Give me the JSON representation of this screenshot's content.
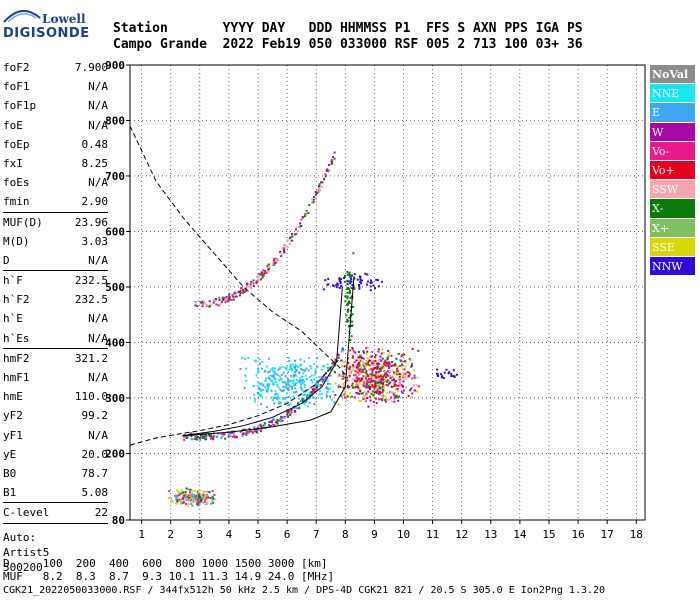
{
  "logo": {
    "line1": "Lowell",
    "line2": "DIGISONDE"
  },
  "header": {
    "line1": "Station       YYYY DAY   DDD HHMMSS P1  FFS S AXN PPS IGA PS",
    "line2": "Campo Grande  2022 Feb19 050 033000 RSF 005 2 713 100 03+ 36"
  },
  "params": [
    {
      "k": "foF2",
      "v": "7.900"
    },
    {
      "k": "foF1",
      "v": "N/A"
    },
    {
      "k": "foF1p",
      "v": "N/A"
    },
    {
      "k": "foE",
      "v": "N/A"
    },
    {
      "k": "foEp",
      "v": "0.48"
    },
    {
      "k": "fxI",
      "v": "8.25"
    },
    {
      "k": "foEs",
      "v": "N/A"
    },
    {
      "k": "fmin",
      "v": "2.90"
    },
    {
      "k": "MUF(D)",
      "v": "23.96",
      "sep": true
    },
    {
      "k": "M(D)",
      "v": "3.03"
    },
    {
      "k": "D",
      "v": "N/A"
    },
    {
      "k": "h`F",
      "v": "232.5",
      "sep": true
    },
    {
      "k": "h`F2",
      "v": "232.5"
    },
    {
      "k": "h`E",
      "v": "N/A"
    },
    {
      "k": "h`Es",
      "v": "N/A"
    },
    {
      "k": "hmF2",
      "v": "321.2",
      "sep": true
    },
    {
      "k": "hmF1",
      "v": "N/A"
    },
    {
      "k": "hmE",
      "v": "110.0"
    },
    {
      "k": "yF2",
      "v": "99.2"
    },
    {
      "k": "yF1",
      "v": "N/A"
    },
    {
      "k": "yE",
      "v": "20.0"
    },
    {
      "k": "B0",
      "v": "78.7"
    },
    {
      "k": "B1",
      "v": "5.08"
    },
    {
      "k": "C-level",
      "v": "22",
      "sep": true
    }
  ],
  "auto": {
    "l1": "Auto:",
    "l2": "Artist5",
    "l3": "500200"
  },
  "legend": [
    {
      "label": "NoVal",
      "color": "#8c8c8c"
    },
    {
      "label": "NNE",
      "color": "#19e6f0"
    },
    {
      "label": "E",
      "color": "#3fa6f2"
    },
    {
      "label": "W",
      "color": "#a60aa6"
    },
    {
      "label": "Vo-",
      "color": "#ea1a8c"
    },
    {
      "label": "Vo+",
      "color": "#e4001e"
    },
    {
      "label": "SSW",
      "color": "#f4a6b0"
    },
    {
      "label": "X-",
      "color": "#0a7a0a"
    },
    {
      "label": "X+",
      "color": "#7fbf5e"
    },
    {
      "label": "SSE",
      "color": "#d6d60a"
    },
    {
      "label": "NNW",
      "color": "#2f0ad6"
    }
  ],
  "footer": {
    "line1": "D     100  200  400  600  800 1000 1500 3000 [km]",
    "line2": "MUF   8.2  8.3  8.7  9.3 10.1 11.3 14.9 24.0 [MHz]",
    "line3": "CGK21_2022050033000.RSF / 344fx512h 50 kHz 2.5 km / DPS-4D CGK21 821 / 20.5 S 305.0 E Ion2Png 1.3.20"
  },
  "chart_data": {
    "type": "scatter",
    "xlim": [
      0.6,
      18.3
    ],
    "ylim": [
      80,
      900
    ],
    "xticks": [
      1,
      2,
      3,
      4,
      5,
      6,
      7,
      8,
      9,
      10,
      11,
      12,
      13,
      14,
      15,
      16,
      17,
      18
    ],
    "yticks": [
      80,
      200,
      300,
      400,
      500,
      600,
      700,
      800,
      900
    ],
    "grid": true,
    "clusters": [
      {
        "name": "low-E-echoes",
        "fx": [
          1.9,
          3.6
        ],
        "fy": [
          105,
          140
        ],
        "colors": [
          "#d6d60a",
          "#3fa6f2",
          "#ea1a8c",
          "#0a7a0a",
          "#f4a6b0"
        ],
        "n": 180
      },
      {
        "name": "F-trace-lower",
        "fx": [
          2.4,
          7.9
        ],
        "fy": [
          230,
          400
        ],
        "colors": [
          "#ea1a8c",
          "#0a7a0a",
          "#a60aa6",
          "#3fa6f2"
        ],
        "n": 260,
        "curve": "ordinary"
      },
      {
        "name": "spread-E-side",
        "fx": [
          4.2,
          7.8
        ],
        "fy": [
          280,
          380
        ],
        "colors": [
          "#3fa6f2",
          "#19e6f0"
        ],
        "n": 320
      },
      {
        "name": "spread-F-main",
        "fx": [
          7.5,
          10.6
        ],
        "fy": [
          285,
          395
        ],
        "colors": [
          "#ea1a8c",
          "#e4001e",
          "#d6d60a",
          "#0a7a0a",
          "#f4a6b0",
          "#a60aa6"
        ],
        "n": 620
      },
      {
        "name": "second-hop",
        "fx": [
          2.8,
          7.6
        ],
        "fy": [
          470,
          740
        ],
        "colors": [
          "#ea1a8c",
          "#f4a6b0",
          "#0a7a0a",
          "#a60aa6"
        ],
        "n": 220,
        "curve": "multihop"
      },
      {
        "name": "NNW-echoes",
        "fx": [
          7.2,
          9.3
        ],
        "fy": [
          495,
          530
        ],
        "colors": [
          "#2f0ad6"
        ],
        "n": 60
      },
      {
        "name": "NNW-high-x",
        "fx": [
          11.0,
          11.9
        ],
        "fy": [
          335,
          355
        ],
        "colors": [
          "#2f0ad6"
        ],
        "n": 20
      },
      {
        "name": "X-vertical",
        "fx": [
          7.9,
          8.3
        ],
        "fy": [
          380,
          570
        ],
        "colors": [
          "#0a7a0a"
        ],
        "n": 60
      }
    ],
    "curves": [
      {
        "name": "MUF-dashed",
        "style": "dashed",
        "x": [
          0.6,
          1.5,
          2.5,
          3.5,
          4.5,
          5.5,
          6.5,
          7.2,
          7.8,
          8.1
        ],
        "y": [
          790,
          690,
          620,
          560,
          500,
          455,
          420,
          385,
          355,
          335
        ]
      },
      {
        "name": "MUF-dashed-low",
        "style": "dashed",
        "x": [
          0.6,
          1.5,
          2.4,
          3.0,
          4.0,
          5.0,
          6.0,
          7.0,
          7.6
        ],
        "y": [
          215,
          228,
          236,
          241,
          252,
          268,
          290,
          325,
          360
        ]
      },
      {
        "name": "profile-solid",
        "style": "solid",
        "x": [
          2.4,
          3.5,
          4.5,
          5.5,
          6.5,
          7.2,
          7.7,
          7.9
        ],
        "y": [
          232,
          240,
          250,
          265,
          290,
          320,
          365,
          500
        ]
      },
      {
        "name": "profile-solid-2",
        "style": "solid",
        "x": [
          2.4,
          4.0,
          5.5,
          6.8,
          7.5,
          8.0,
          8.3
        ],
        "y": [
          232,
          238,
          248,
          260,
          275,
          320,
          520
        ]
      }
    ]
  }
}
